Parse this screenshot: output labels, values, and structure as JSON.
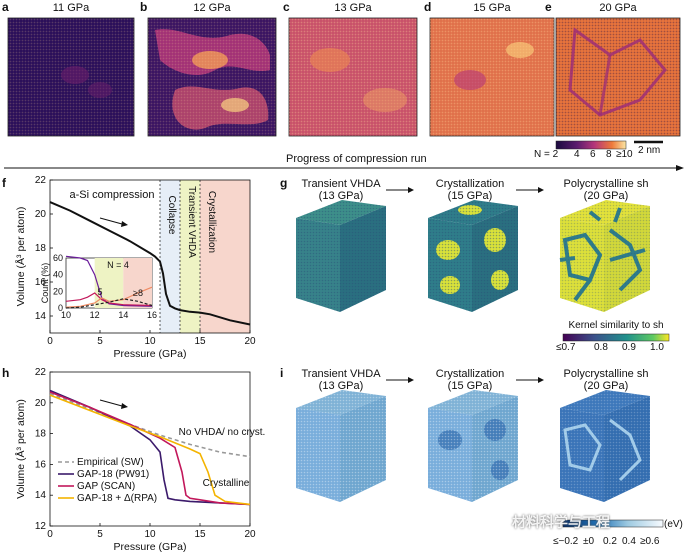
{
  "panel_labels": {
    "a": "a",
    "b": "b",
    "c": "c",
    "d": "d",
    "e": "e",
    "f": "f",
    "g": "g",
    "h": "h",
    "i": "i"
  },
  "top_panels": [
    {
      "pressure": "11 GPa"
    },
    {
      "pressure": "12 GPa"
    },
    {
      "pressure": "13 GPa"
    },
    {
      "pressure": "15 GPa"
    },
    {
      "pressure": "20 GPa"
    }
  ],
  "top_colorbar": {
    "prefix": "N = 2",
    "ticks": [
      "4",
      "6",
      "8",
      "≥10"
    ]
  },
  "scalebar_label": "2 nm",
  "progress_label": "Progress of compression run",
  "colors": {
    "inferno_dark": "#2a0f5a",
    "inferno_mid": "#b5367a",
    "inferno_orange": "#e8743c",
    "inferno_light": "#fbd37f",
    "viridis_dark": "#3b528b",
    "viridis_teal": "#21918c",
    "viridis_yellow": "#fde725",
    "phase_blue": "#e6eef7",
    "phase_green": "#eef3c4",
    "phase_red": "#f7d6cc"
  },
  "chart_data": [
    {
      "type": "line",
      "panel": "f",
      "title": "a-Si compression",
      "xlabel": "Pressure (GPa)",
      "ylabel": "Volume (Å³ per atom)",
      "xlim": [
        0,
        20
      ],
      "ylim": [
        13,
        22
      ],
      "xticks": [
        "0",
        "5",
        "10",
        "15",
        "20"
      ],
      "yticks": [
        "14",
        "16",
        "18",
        "20",
        "22"
      ],
      "regions": [
        {
          "label": "Collapse",
          "from": 11,
          "to": 13
        },
        {
          "label": "Transient VHDA",
          "from": 13,
          "to": 15
        },
        {
          "label": "Crystallization",
          "from": 15,
          "to": 20
        }
      ],
      "series": [
        {
          "name": "a-Si",
          "x": [
            0,
            2,
            4,
            6,
            8,
            10,
            10.5,
            11,
            11.3,
            11.6,
            12,
            12.5,
            13,
            14,
            15,
            16,
            18,
            20
          ],
          "y": [
            20.7,
            20.2,
            19.6,
            19.0,
            18.4,
            17.7,
            17.5,
            17.2,
            16.5,
            15.3,
            14.6,
            14.45,
            14.35,
            14.25,
            14.2,
            14.1,
            13.75,
            13.5
          ]
        }
      ],
      "inset": {
        "ylabel": "Count (%)",
        "xlim": [
          10,
          16
        ],
        "ylim": [
          0,
          60
        ],
        "xticks": [
          "10",
          "12",
          "14",
          "16"
        ],
        "yticks": [
          "0",
          "20",
          "40",
          "60"
        ],
        "annotations": [
          "N = 4",
          "5",
          "≥8"
        ],
        "series": [
          {
            "name": "N=4",
            "x": [
              10,
              11,
              11.5,
              12,
              12.5,
              13,
              14,
              16
            ],
            "y": [
              62,
              60,
              57,
              40,
              12,
              5,
              3,
              2
            ]
          },
          {
            "name": "N=5",
            "x": [
              10,
              11,
              11.5,
              12,
              12.5,
              13,
              14,
              16
            ],
            "y": [
              8,
              10,
              13,
              18,
              10,
              6,
              4,
              3
            ]
          },
          {
            "name": "N=6",
            "x": [
              10,
              11,
              12,
              12.5,
              13,
              14,
              15,
              16
            ],
            "y": [
              1,
              2,
              6,
              12,
              8,
              10,
              18,
              25
            ]
          },
          {
            "name": "≥8",
            "x": [
              10,
              11,
              12,
              13,
              14,
              15,
              16
            ],
            "y": [
              0,
              1,
              4,
              7,
              11,
              8,
              3
            ]
          }
        ]
      }
    },
    {
      "type": "line",
      "panel": "h",
      "xlabel": "Pressure (GPa)",
      "ylabel": "Volume (Å³ per atom)",
      "xlim": [
        0,
        20
      ],
      "ylim": [
        12,
        22
      ],
      "xticks": [
        "0",
        "5",
        "10",
        "15",
        "20"
      ],
      "yticks": [
        "12",
        "14",
        "16",
        "18",
        "20",
        "22"
      ],
      "annotations": [
        "No VHDA/ no cryst.",
        "Crystalline"
      ],
      "series": [
        {
          "name": "Empirical (SW)",
          "style": "dashed",
          "color": "#999999",
          "x": [
            0,
            4,
            8,
            11,
            14,
            17,
            20
          ],
          "y": [
            20.6,
            19.6,
            18.6,
            17.9,
            17.3,
            16.8,
            16.5
          ]
        },
        {
          "name": "GAP-18 (PW91)",
          "color": "#3b1a6b",
          "x": [
            0,
            4,
            8,
            10,
            11,
            11.4,
            11.8,
            12.5,
            14,
            17,
            20
          ],
          "y": [
            20.8,
            19.7,
            18.5,
            17.6,
            16.8,
            15.0,
            13.8,
            13.7,
            13.6,
            13.5,
            13.4
          ]
        },
        {
          "name": "GAP (SCAN)",
          "color": "#c2185b",
          "x": [
            0,
            4,
            8,
            11,
            12.5,
            13.2,
            13.6,
            14,
            15,
            17,
            20
          ],
          "y": [
            20.7,
            19.7,
            18.6,
            17.7,
            17.1,
            15.5,
            14.0,
            13.8,
            13.7,
            13.5,
            13.4
          ]
        },
        {
          "name": "GAP-18 + Δ(RPA)",
          "color": "#f4b400",
          "x": [
            0,
            4,
            8,
            11,
            14,
            15,
            15.8,
            16.5,
            17.5,
            20
          ],
          "y": [
            20.5,
            19.5,
            18.5,
            17.8,
            17.0,
            16.7,
            15.5,
            14.0,
            13.6,
            13.4
          ]
        }
      ]
    }
  ],
  "g_panel": {
    "titles": [
      {
        "l1": "Transient VHDA",
        "l2": "(13 GPa)"
      },
      {
        "l1": "Crystallization",
        "l2": "(15 GPa)"
      },
      {
        "l1": "Polycrystalline sh",
        "l2": "(20 GPa)"
      }
    ],
    "colorbar_title": "Kernel similarity to sh",
    "colorbar_ticks": [
      "≤0.7",
      "0.8",
      "0.9",
      "1.0"
    ]
  },
  "i_panel": {
    "titles": [
      {
        "l1": "Transient VHDA",
        "l2": "(13 GPa)"
      },
      {
        "l1": "Crystallization",
        "l2": "(15 GPa)"
      },
      {
        "l1": "Polycrystalline sh",
        "l2": "(20 GPa)"
      }
    ],
    "colorbar_ticks": [
      "≤−0.2",
      "±0",
      "0.2",
      "0.4",
      "≥0.6"
    ],
    "unit": "(eV)"
  },
  "watermark": "材料科学与工程"
}
